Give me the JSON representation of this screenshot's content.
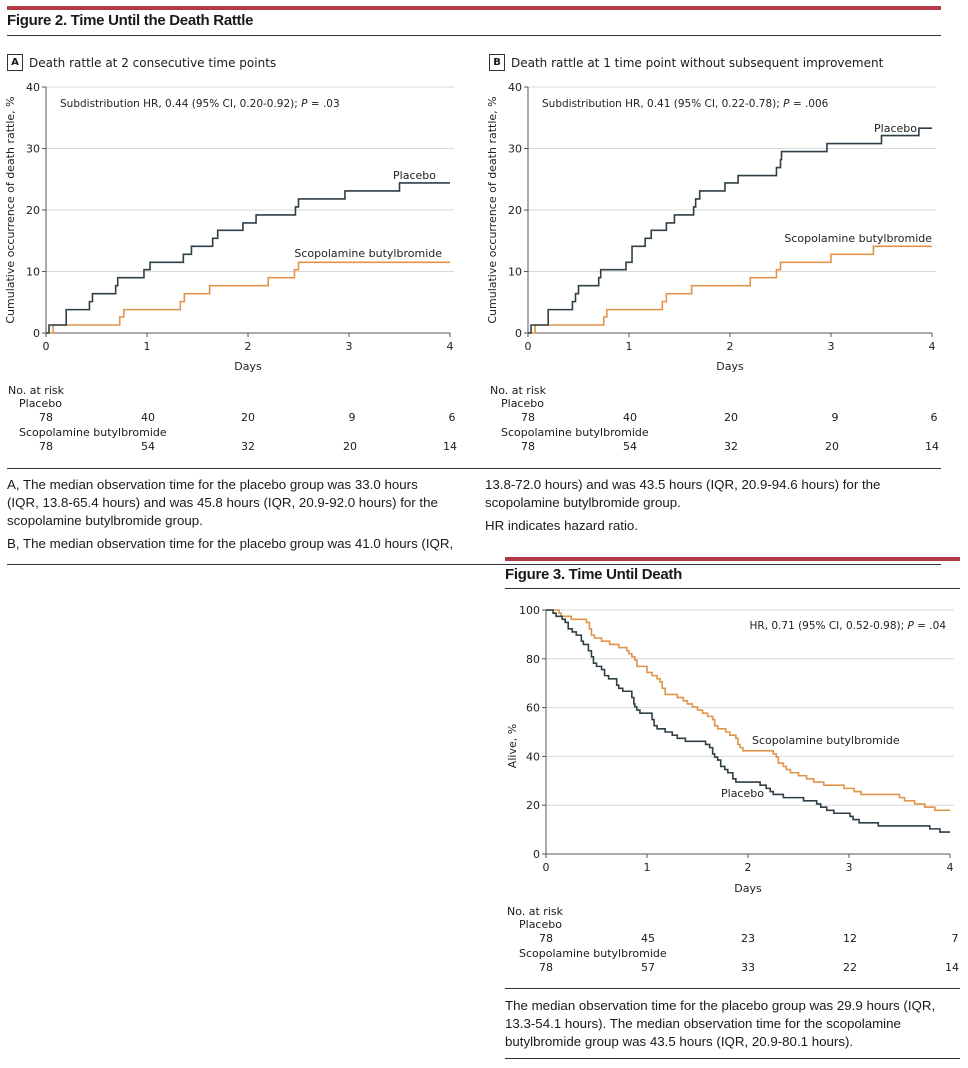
{
  "figure2": {
    "title": "Figure 2. Time Until the Death Rattle",
    "panels": [
      {
        "letter": "A",
        "heading": "Death rattle at 2 consecutive time points",
        "hr_prefix": "Subdistribution HR, 0.44 (95% CI, 0.20-0.92); ",
        "hr_p_label": "P",
        "hr_p_value": " = .03",
        "risk_title": "No. at risk",
        "risk_groups": [
          {
            "name": "Placebo",
            "values": [
              "78",
              "40",
              "20",
              "9",
              "6"
            ]
          },
          {
            "name": "Scopolamine butylbromide",
            "values": [
              "78",
              "54",
              "32",
              "20",
              "14"
            ]
          }
        ]
      },
      {
        "letter": "B",
        "heading": "Death rattle at 1 time point without subsequent improvement",
        "hr_prefix": "Subdistribution HR, 0.41 (95% CI, 0.22-0.78); ",
        "hr_p_label": "P",
        "hr_p_value": " = .006",
        "risk_title": "No. at risk",
        "risk_groups": [
          {
            "name": "Placebo",
            "values": [
              "78",
              "40",
              "20",
              "9",
              "6"
            ]
          },
          {
            "name": "Scopolamine butylbromide",
            "values": [
              "78",
              "54",
              "32",
              "20",
              "14"
            ]
          }
        ]
      }
    ],
    "caption_left": [
      "A, The median observation time for the placebo group was 33.0 hours (IQR, 13.8-65.4 hours) and was 45.8 hours (IQR, 20.9-92.0 hours) for the scopolamine butylbromide group.",
      "B, The median observation time for the placebo group was 41.0 hours (IQR,"
    ],
    "caption_right": [
      "13.8-72.0 hours) and was 43.5 hours (IQR, 20.9-94.6 hours) for the scopolamine butylbromide group.",
      "HR indicates hazard ratio."
    ]
  },
  "figure3": {
    "title": "Figure 3. Time Until Death",
    "hr_prefix": "HR, 0.71 (95% CI, 0.52-0.98); ",
    "hr_p_label": "P",
    "hr_p_value": " = .04",
    "risk_title": "No. at risk",
    "risk_groups": [
      {
        "name": "Placebo",
        "values": [
          "78",
          "45",
          "23",
          "12",
          "7"
        ]
      },
      {
        "name": "Scopolamine butylbromide",
        "values": [
          "78",
          "57",
          "33",
          "22",
          "14"
        ]
      }
    ],
    "caption": "The median observation time for the placebo group was 29.9 hours (IQR, 13.3-54.1 hours). The median observation time for the scopolamine butylbromide group was 43.5 hours (IQR, 20.9-80.1 hours)."
  },
  "colors": {
    "placebo": "#2f3f46",
    "scopolamine": "#e0954a",
    "accent_red": "#b23a48",
    "grid": "#d9d9d9"
  },
  "chart_data": [
    {
      "type": "line",
      "id": "fig2A",
      "title": "Death rattle at 2 consecutive time points",
      "xlabel": "Days",
      "ylabel": "Cumulative occurrence of death rattle, %",
      "xlim": [
        0,
        4
      ],
      "ylim": [
        0,
        40
      ],
      "xticks": [
        "0",
        "1",
        "2",
        "3",
        "4"
      ],
      "yticks": [
        "0",
        "10",
        "20",
        "30",
        "40"
      ],
      "grid": true,
      "annotation": "Subdistribution HR, 0.44 (95% CI, 0.20-0.92); P = .03",
      "series": [
        {
          "name": "Placebo",
          "label": "Placebo",
          "step": "post",
          "x": [
            0,
            0.03,
            0.2,
            0.43,
            0.46,
            0.69,
            0.71,
            0.97,
            1.03,
            1.36,
            1.44,
            1.65,
            1.7,
            1.95,
            2.08,
            2.47,
            2.5,
            2.96,
            3.5,
            4.0
          ],
          "y": [
            0,
            1.3,
            3.8,
            5.1,
            6.4,
            7.7,
            9.0,
            10.3,
            11.5,
            12.8,
            14.1,
            15.4,
            16.7,
            17.9,
            19.2,
            20.5,
            21.8,
            23.1,
            24.4,
            24.4
          ]
        },
        {
          "name": "Scopolamine butylbromide",
          "label": "Scopolamine butylbromide",
          "step": "post",
          "x": [
            0,
            0.07,
            0.73,
            0.77,
            1.33,
            1.37,
            1.62,
            2.2,
            2.46,
            2.5,
            4.0
          ],
          "y": [
            0,
            1.3,
            2.6,
            3.8,
            5.1,
            6.4,
            7.7,
            9.0,
            10.3,
            11.5,
            11.5
          ]
        }
      ]
    },
    {
      "type": "line",
      "id": "fig2B",
      "title": "Death rattle at 1 time point without subsequent improvement",
      "xlabel": "Days",
      "ylabel": "Cumulative occurrence of death rattle, %",
      "xlim": [
        0,
        4
      ],
      "ylim": [
        0,
        40
      ],
      "xticks": [
        "0",
        "1",
        "2",
        "3",
        "4"
      ],
      "yticks": [
        "0",
        "10",
        "20",
        "30",
        "40"
      ],
      "grid": true,
      "annotation": "Subdistribution HR, 0.41 (95% CI, 0.22-0.78); P = .006",
      "series": [
        {
          "name": "Placebo",
          "label": "Placebo",
          "step": "post",
          "x": [
            0,
            0.03,
            0.2,
            0.44,
            0.47,
            0.5,
            0.7,
            0.72,
            0.97,
            1.03,
            1.16,
            1.22,
            1.37,
            1.45,
            1.64,
            1.66,
            1.7,
            1.95,
            2.08,
            2.46,
            2.5,
            2.51,
            2.96,
            3.5,
            3.87,
            4.0
          ],
          "y": [
            0,
            1.3,
            3.8,
            5.1,
            6.4,
            7.7,
            9.0,
            10.3,
            11.5,
            14.1,
            15.4,
            16.7,
            17.9,
            19.2,
            20.5,
            21.8,
            23.1,
            24.4,
            25.6,
            26.9,
            28.2,
            29.5,
            30.8,
            32.1,
            33.3,
            33.3
          ]
        },
        {
          "name": "Scopolamine butylbromide",
          "label": "Scopolamine butylbromide",
          "step": "post",
          "x": [
            0,
            0.07,
            0.75,
            0.78,
            1.33,
            1.37,
            1.62,
            2.2,
            2.46,
            2.5,
            3.0,
            3.42,
            4.0
          ],
          "y": [
            0,
            1.3,
            2.6,
            3.8,
            5.1,
            6.4,
            7.7,
            9.0,
            10.3,
            11.5,
            12.8,
            14.1,
            14.1
          ]
        }
      ]
    },
    {
      "type": "line",
      "id": "fig3",
      "title": "Time Until Death",
      "xlabel": "Days",
      "ylabel": "Alive, %",
      "xlim": [
        0,
        4
      ],
      "ylim": [
        0,
        100
      ],
      "xticks": [
        "0",
        "1",
        "2",
        "3",
        "4"
      ],
      "yticks": [
        "0",
        "20",
        "40",
        "60",
        "80",
        "100"
      ],
      "grid": true,
      "annotation": "HR, 0.71 (95% CI, 0.52-0.98); P = .04",
      "series": [
        {
          "name": "Placebo",
          "label": "Placebo",
          "step": "post",
          "x": [
            0,
            0.07,
            0.1,
            0.16,
            0.19,
            0.22,
            0.26,
            0.3,
            0.35,
            0.37,
            0.42,
            0.45,
            0.47,
            0.5,
            0.55,
            0.58,
            0.62,
            0.7,
            0.72,
            0.76,
            0.85,
            0.87,
            0.88,
            0.9,
            0.93,
            1.05,
            1.07,
            1.1,
            1.18,
            1.25,
            1.3,
            1.38,
            1.45,
            1.58,
            1.62,
            1.65,
            1.67,
            1.7,
            1.73,
            1.77,
            1.8,
            1.85,
            1.88,
            1.92,
            2.12,
            2.18,
            2.22,
            2.25,
            2.35,
            2.42,
            2.55,
            2.68,
            2.72,
            2.78,
            2.85,
            2.95,
            3.01,
            3.04,
            3.1,
            3.29,
            3.75,
            3.8,
            3.9,
            4.0
          ],
          "y": [
            100,
            98.7,
            97.4,
            96.2,
            94.9,
            92.3,
            91.0,
            89.7,
            87.2,
            85.9,
            83.3,
            80.8,
            78.2,
            76.9,
            75.6,
            73.1,
            71.8,
            69.2,
            67.9,
            66.7,
            64.1,
            61.5,
            60.3,
            59.0,
            57.7,
            55.1,
            52.6,
            51.3,
            50.0,
            48.7,
            47.4,
            46.2,
            46.2,
            44.9,
            43.6,
            41.0,
            39.7,
            38.5,
            35.9,
            34.6,
            33.3,
            30.8,
            29.5,
            29.5,
            28.2,
            26.9,
            25.6,
            24.4,
            23.1,
            23.1,
            21.8,
            20.5,
            19.2,
            17.9,
            16.7,
            16.7,
            15.4,
            14.1,
            12.8,
            11.5,
            11.5,
            10.3,
            9.0,
            9.0
          ]
        },
        {
          "name": "Scopolamine butylbromide",
          "label": "Scopolamine butylbromide",
          "step": "post",
          "x": [
            0,
            0.13,
            0.15,
            0.25,
            0.4,
            0.43,
            0.45,
            0.48,
            0.55,
            0.63,
            0.72,
            0.8,
            0.82,
            0.85,
            0.88,
            0.9,
            1.0,
            1.05,
            1.1,
            1.13,
            1.15,
            1.18,
            1.3,
            1.36,
            1.4,
            1.45,
            1.5,
            1.55,
            1.6,
            1.65,
            1.67,
            1.7,
            1.78,
            1.82,
            1.88,
            1.9,
            1.92,
            1.95,
            2.25,
            2.28,
            2.3,
            2.35,
            2.38,
            2.42,
            2.5,
            2.58,
            2.65,
            2.72,
            2.75,
            2.95,
            3.05,
            3.12,
            3.3,
            3.5,
            3.55,
            3.65,
            3.75,
            3.85,
            3.93,
            4.0
          ],
          "y": [
            100,
            98.7,
            97.4,
            96.2,
            94.9,
            92.3,
            89.7,
            88.5,
            87.2,
            85.9,
            84.6,
            83.3,
            82.1,
            80.8,
            79.5,
            76.9,
            74.4,
            73.1,
            71.8,
            70.5,
            67.9,
            65.4,
            64.1,
            62.8,
            61.5,
            60.3,
            59.0,
            57.7,
            56.4,
            55.1,
            52.6,
            51.3,
            50.0,
            48.7,
            47.4,
            44.9,
            43.6,
            42.3,
            41.0,
            39.7,
            37.2,
            35.9,
            34.6,
            33.3,
            32.1,
            30.8,
            29.5,
            29.5,
            28.2,
            26.9,
            25.6,
            24.4,
            24.4,
            23.1,
            21.8,
            20.5,
            19.2,
            17.9,
            17.9,
            17.9
          ]
        }
      ]
    }
  ]
}
